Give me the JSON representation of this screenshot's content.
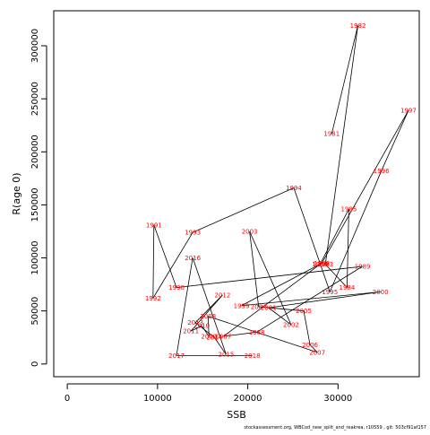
{
  "chart_data": {
    "type": "line",
    "title": "",
    "xlabel": "SSB",
    "ylabel": "R(age 0)",
    "xlim": [
      -1500,
      39000
    ],
    "ylim": [
      -12000,
      333000
    ],
    "x_ticks": [
      {
        "value": 0,
        "label": "0"
      },
      {
        "value": 10000,
        "label": "10000"
      },
      {
        "value": 20000,
        "label": "20000"
      },
      {
        "value": 30000,
        "label": "30000"
      }
    ],
    "y_ticks": [
      {
        "value": 0,
        "label": "0"
      },
      {
        "value": 50000,
        "label": "50000"
      },
      {
        "value": 100000,
        "label": "100000"
      },
      {
        "value": 150000,
        "label": "150000"
      },
      {
        "value": 200000,
        "label": "200000"
      },
      {
        "value": 250000,
        "label": "250000"
      },
      {
        "value": 300000,
        "label": "300000"
      }
    ],
    "grid": false,
    "line_color": "#000000",
    "label_color": "#ff0000",
    "points": [
      {
        "year": "1981",
        "x": 29300,
        "y": 217000
      },
      {
        "year": "1982",
        "x": 32200,
        "y": 319000
      },
      {
        "year": "1983",
        "x": 28600,
        "y": 94000
      },
      {
        "year": "1984",
        "x": 31000,
        "y": 72000
      },
      {
        "year": "1985",
        "x": 31200,
        "y": 146000
      },
      {
        "year": "1986",
        "x": 28000,
        "y": 94000
      },
      {
        "year": "1987",
        "x": 17300,
        "y": 26000
      },
      {
        "year": "1988",
        "x": 21000,
        "y": 30000
      },
      {
        "year": "1989",
        "x": 32700,
        "y": 92000
      },
      {
        "year": "1990",
        "x": 12100,
        "y": 72000
      },
      {
        "year": "1991",
        "x": 9600,
        "y": 131000
      },
      {
        "year": "1992",
        "x": 9500,
        "y": 62000
      },
      {
        "year": "1993",
        "x": 13900,
        "y": 124000
      },
      {
        "year": "1994",
        "x": 25100,
        "y": 166000
      },
      {
        "year": "1995",
        "x": 29100,
        "y": 68000
      },
      {
        "year": "1996",
        "x": 34800,
        "y": 182000
      },
      {
        "year": "1997",
        "x": 37800,
        "y": 239000
      },
      {
        "year": "1998",
        "x": 28200,
        "y": 95000
      },
      {
        "year": "1999",
        "x": 19300,
        "y": 55000
      },
      {
        "year": "2000",
        "x": 34700,
        "y": 68000
      },
      {
        "year": "2001",
        "x": 22300,
        "y": 53000
      },
      {
        "year": "2002",
        "x": 24800,
        "y": 37000
      },
      {
        "year": "2003",
        "x": 20200,
        "y": 125000
      },
      {
        "year": "2004",
        "x": 21200,
        "y": 54000
      },
      {
        "year": "2005",
        "x": 26200,
        "y": 50000
      },
      {
        "year": "2006",
        "x": 26900,
        "y": 18000
      },
      {
        "year": "2007",
        "x": 27700,
        "y": 11000
      },
      {
        "year": "2008",
        "x": 15600,
        "y": 45000
      },
      {
        "year": "2009",
        "x": 15700,
        "y": 26000
      },
      {
        "year": "2010",
        "x": 14900,
        "y": 36000
      },
      {
        "year": "2011",
        "x": 13700,
        "y": 31000
      },
      {
        "year": "2012",
        "x": 17200,
        "y": 65000
      },
      {
        "year": "2013",
        "x": 14200,
        "y": 39000
      },
      {
        "year": "2014",
        "x": 16300,
        "y": 25000
      },
      {
        "year": "2015",
        "x": 17600,
        "y": 9000
      },
      {
        "year": "2016",
        "x": 13900,
        "y": 100000
      },
      {
        "year": "2017",
        "x": 12100,
        "y": 8000
      },
      {
        "year": "2018",
        "x": 20500,
        "y": 8000
      }
    ]
  },
  "caption": "stockassessment.org,  WBCod_new_split_and_reakrea, r10559 , git: 503cf91af157"
}
